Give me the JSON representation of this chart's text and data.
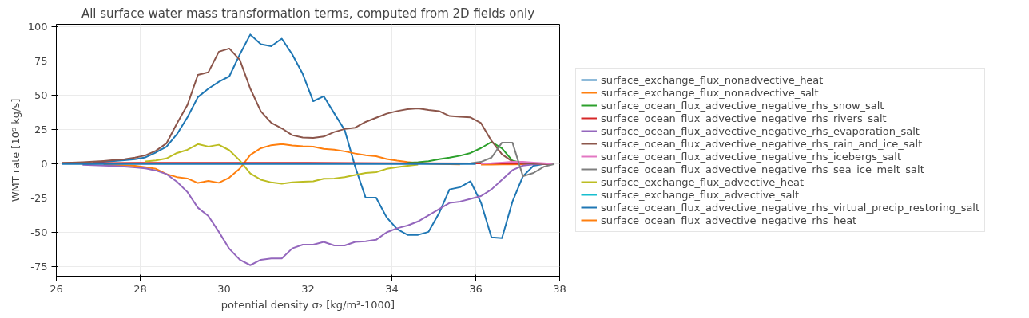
{
  "chart_data": {
    "type": "line",
    "title": "All surface water mass transformation terms, computed from 2D fields only",
    "xlabel": "potential density σ₂ [kg/m³-1000]",
    "ylabel": "WMT rate [10⁹ kg/s]",
    "x": [
      26.125,
      26.375,
      26.625,
      26.875,
      27.125,
      27.375,
      27.625,
      27.875,
      28.125,
      28.375,
      28.625,
      28.875,
      29.125,
      29.375,
      29.625,
      29.875,
      30.125,
      30.375,
      30.625,
      30.875,
      31.125,
      31.375,
      31.625,
      31.875,
      32.125,
      32.375,
      32.625,
      32.875,
      33.125,
      33.375,
      33.625,
      33.875,
      34.125,
      34.375,
      34.625,
      34.875,
      35.125,
      35.375,
      35.625,
      35.875,
      36.125,
      36.375,
      36.625,
      36.875,
      37.125,
      37.375,
      37.625,
      37.875
    ],
    "xlim": [
      26,
      38
    ],
    "xticks": [
      26,
      28,
      30,
      32,
      34,
      36,
      38
    ],
    "ylim": [
      -82,
      102
    ],
    "yticks": [
      -75,
      -50,
      -25,
      0,
      25,
      50,
      75,
      100
    ],
    "grid": true,
    "legend": "right",
    "series": [
      {
        "name": "surface_exchange_flux_nonadvective_heat",
        "color": "#1f77b4",
        "values": [
          null,
          null,
          null,
          1.2,
          1.6,
          2.1,
          2.7,
          3.4,
          4.8,
          8.4,
          12.6,
          21.7,
          34,
          48.8,
          55,
          60,
          64,
          80,
          94.5,
          87.5,
          86,
          91.5,
          80,
          65.7,
          45.8,
          49.4,
          37,
          24.7,
          -2,
          -24.7,
          -24.7,
          -39,
          -47.6,
          -51.8,
          -51.8,
          -49.6,
          -36,
          -18.6,
          -17,
          -12.7,
          -28.3,
          -53.6,
          -54.2,
          -27.5,
          -9,
          -1.4,
          0,
          0
        ]
      },
      {
        "name": "surface_exchange_flux_nonadvective_salt",
        "color": "#ff7f0e",
        "values": [
          null,
          null,
          null,
          null,
          -0.7,
          -0.9,
          -1.1,
          -1.4,
          -2.4,
          -3.6,
          -7.4,
          -9.6,
          -10.6,
          -13.9,
          -12.4,
          -13.8,
          -10,
          -3.4,
          6.6,
          11.5,
          13.7,
          14.5,
          13.5,
          12.9,
          12.6,
          11,
          10.4,
          9.2,
          7.6,
          6.4,
          5.6,
          3.6,
          2.4,
          1.4,
          0.6,
          0.2,
          0,
          -0.2,
          -0.3,
          null,
          -0.5,
          -0.5,
          -0.4,
          -0.3,
          -0.2,
          -0.1,
          null,
          null
        ]
      },
      {
        "name": "surface_ocean_flux_advective_negative_rhs_snow_salt",
        "color": "#2ca02c",
        "values": [
          null,
          null,
          null,
          null,
          null,
          null,
          null,
          null,
          null,
          null,
          null,
          null,
          null,
          null,
          null,
          null,
          null,
          null,
          null,
          null,
          null,
          null,
          null,
          null,
          null,
          null,
          null,
          null,
          null,
          null,
          null,
          null,
          null,
          0.8,
          1.3,
          2,
          3.4,
          4.6,
          6,
          8,
          11.6,
          16,
          11.4,
          2.4,
          0.6,
          0.2,
          null,
          null
        ]
      },
      {
        "name": "surface_ocean_flux_advective_negative_rhs_rivers_salt",
        "color": "#d62728",
        "x": [
          26.125,
          28,
          30,
          32,
          34,
          36,
          37,
          37.875
        ],
        "values": [
          0.5,
          0.8,
          0.8,
          0.8,
          0.6,
          0.4,
          0.2,
          0
        ]
      },
      {
        "name": "surface_ocean_flux_advective_negative_rhs_evaporation_salt",
        "color": "#9467bd",
        "values": [
          null,
          null,
          -0.6,
          -0.9,
          -1.2,
          -1.5,
          -1.9,
          -2.5,
          -3.2,
          -4.8,
          -7.4,
          -13,
          -20.5,
          -32,
          -38,
          -49.6,
          -62,
          -70,
          -74,
          -70,
          -69,
          -69,
          -61.7,
          -59,
          -59,
          -57,
          -59.6,
          -59.6,
          -57,
          -56.5,
          -55.4,
          -50,
          -47,
          -45,
          -42,
          -37.5,
          -33,
          -28.5,
          -27.5,
          -25.5,
          -23.5,
          -18.6,
          -11.6,
          -4.5,
          -1.2,
          -0.3,
          0,
          0
        ]
      },
      {
        "name": "surface_ocean_flux_advective_negative_rhs_rain_and_ice_salt",
        "color": "#8c564b",
        "values": [
          0.8,
          1.0,
          1.3,
          1.7,
          2.2,
          2.8,
          3.4,
          4.6,
          6.3,
          9.6,
          15,
          29.5,
          43,
          65,
          67,
          82,
          84.3,
          76,
          55,
          38.5,
          30,
          26,
          21,
          19.3,
          19,
          20,
          23.3,
          25.5,
          26.5,
          30.7,
          33.7,
          36.7,
          38.6,
          40,
          40.6,
          39.4,
          38.6,
          35,
          34.4,
          34,
          29.8,
          16.9,
          7,
          1.8,
          0.5,
          0.2,
          0,
          0
        ]
      },
      {
        "name": "surface_ocean_flux_advective_negative_rhs_icebergs_salt",
        "color": "#e377c2",
        "x": [
          36.125,
          36.375,
          36.625,
          36.875,
          37.125,
          37.375,
          37.625,
          37.875
        ],
        "values": [
          0.3,
          0.5,
          1,
          1.5,
          1.5,
          1,
          0.5,
          0
        ]
      },
      {
        "name": "surface_ocean_flux_advective_negative_rhs_sea_ice_melt_salt",
        "color": "#7f7f7f",
        "x": [
          35.625,
          35.875,
          36.125,
          36.375,
          36.625,
          36.875,
          37.125,
          37.375,
          37.625,
          37.875
        ],
        "values": [
          0.3,
          0.6,
          1.5,
          4.6,
          15.6,
          15.6,
          -9,
          -6.6,
          -2,
          0
        ]
      },
      {
        "name": "surface_exchange_flux_advective_heat",
        "color": "#bcbd22",
        "values": [
          null,
          null,
          null,
          null,
          null,
          null,
          null,
          null,
          1.9,
          2.6,
          4,
          8,
          10.3,
          14.5,
          12.7,
          14,
          10,
          2.5,
          -7,
          -11.5,
          -13.5,
          -14.5,
          -13.5,
          -13,
          -12.7,
          -10.8,
          -10.6,
          -9.6,
          -8,
          -6.6,
          -6,
          -3.6,
          -2.4,
          -1.4,
          -0.5,
          null,
          null,
          null,
          null,
          null,
          null,
          null,
          null,
          null,
          null,
          null,
          null,
          null
        ]
      },
      {
        "name": "surface_exchange_flux_advective_salt",
        "color": "#17becf",
        "values": [
          null,
          null,
          null,
          null,
          null,
          null,
          null,
          null,
          null,
          null,
          null,
          null,
          null,
          null,
          null,
          null,
          null,
          null,
          null,
          null,
          null,
          null,
          null,
          null,
          null,
          null,
          null,
          null,
          null,
          null,
          null,
          null,
          null,
          null,
          null,
          null,
          null,
          null,
          null,
          null,
          null,
          null,
          null,
          null,
          null,
          null,
          null,
          null
        ]
      },
      {
        "name": "surface_ocean_flux_advective_negative_rhs_virtual_precip_restoring_salt",
        "color": "#1f77b4",
        "x": [
          26.125,
          30,
          34,
          36
        ],
        "values": [
          0,
          0,
          0,
          0
        ]
      },
      {
        "name": "surface_ocean_flux_advective_negative_rhs_heat",
        "color": "#ff7f0e",
        "values": [
          null,
          null,
          null,
          null,
          null,
          null,
          null,
          null,
          null,
          null,
          null,
          null,
          null,
          null,
          null,
          null,
          null,
          null,
          null,
          null,
          null,
          null,
          null,
          null,
          null,
          null,
          null,
          null,
          null,
          null,
          null,
          null,
          null,
          null,
          null,
          null,
          null,
          null,
          null,
          null,
          null,
          null,
          null,
          null,
          null,
          null,
          null,
          null
        ]
      }
    ]
  }
}
